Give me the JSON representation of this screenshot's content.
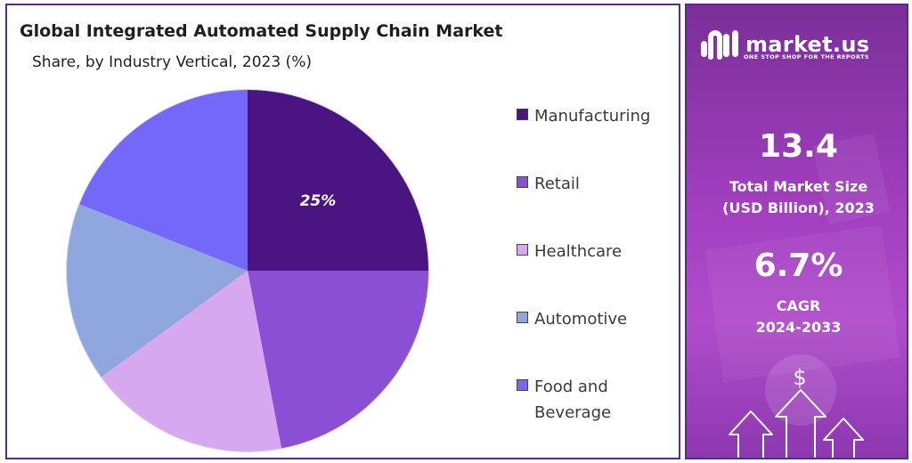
{
  "chart_data": {
    "type": "pie",
    "title": "Global Integrated Automated Supply Chain Market",
    "subtitle": "Share, by Industry Vertical, 2023 (%)",
    "legend_position": "right",
    "slices": [
      {
        "label": "Manufacturing",
        "value": 25,
        "color": "#4a1482",
        "data_label": "25%"
      },
      {
        "label": "Retail",
        "value": 22,
        "color": "#8a4fd4",
        "data_label": ""
      },
      {
        "label": "Healthcare",
        "value": 18,
        "color": "#d6a8ef",
        "data_label": ""
      },
      {
        "label": "Automotive",
        "value": 16,
        "color": "#90a6de",
        "data_label": ""
      },
      {
        "label": "Food and Beverage",
        "value": 19,
        "color": "#7468fb",
        "data_label": ""
      }
    ]
  },
  "sidebar": {
    "brand": "market.us",
    "tagline": "ONE STOP SHOP FOR THE REPORTS",
    "market_size_value": "13.4",
    "market_size_label_line1": "Total Market Size",
    "market_size_label_line2": "(USD Billion), 2023",
    "cagr_value": "6.7%",
    "cagr_label_line1": "CAGR",
    "cagr_label_line2": "2024-2033",
    "dollar_glyph": "$",
    "logo_icon": "market-us-logo-icon",
    "decor_icon": "growth-arrows-icon"
  }
}
